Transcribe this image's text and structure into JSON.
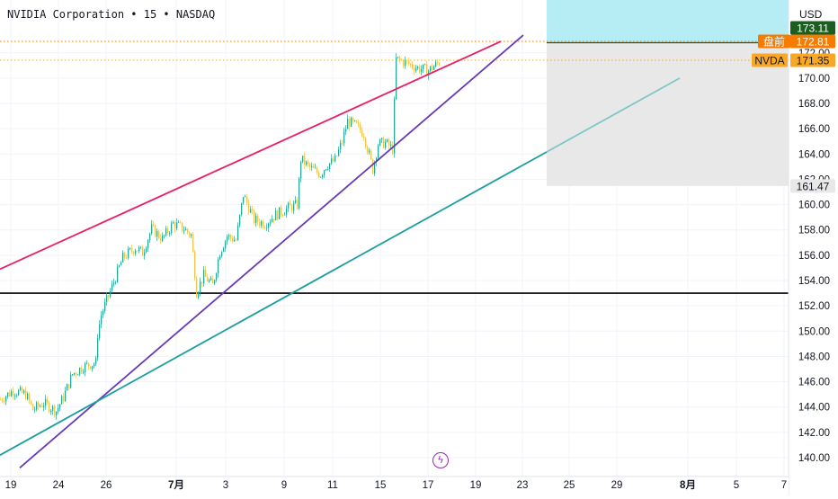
{
  "header": {
    "title": "NVIDIA Corporation • 15 • NASDAQ",
    "currency": "USD"
  },
  "markers": {
    "premarket_label": "盘前",
    "premarket_price": "172.81",
    "symbol_label": "NVDA",
    "symbol_price": "171.35",
    "target_price": "173.11",
    "stop_price": "161.47",
    "event_icon": "lightning-icon"
  },
  "colors": {
    "upper_trend": "#e91e63",
    "lower_trend": "#673ab7",
    "support_trend": "#1a9e9e",
    "horizontal_line": "#000000",
    "candle_up": "#26a69a",
    "candle_down": "#f2c14e",
    "target_zone": "#b2ebf2",
    "stop_zone": "#e8e8e8",
    "premarket_tag": "#f57c00",
    "symbol_tag": "#f9a825"
  },
  "chart_data": {
    "type": "candlestick",
    "title": "NVIDIA Corporation • 15 • NASDAQ",
    "ylabel": "USD",
    "ylim": [
      139.2,
      176.5
    ],
    "y_ticks": [
      "140.00",
      "142.00",
      "144.00",
      "146.00",
      "148.00",
      "150.00",
      "152.00",
      "154.00",
      "156.00",
      "158.00",
      "160.00",
      "162.00",
      "164.00",
      "166.00",
      "168.00",
      "170.00",
      "172.00"
    ],
    "x_ticks": [
      "19",
      "24",
      "26",
      "7月",
      "3",
      "9",
      "11",
      "15",
      "17",
      "19",
      "23",
      "25",
      "29",
      "8月",
      "5",
      "7"
    ],
    "price_path": [
      [
        0,
        144.6
      ],
      [
        14,
        145.3
      ],
      [
        28,
        145.0
      ],
      [
        36,
        143.8
      ],
      [
        48,
        144.3
      ],
      [
        62,
        143.7
      ],
      [
        70,
        144.8
      ],
      [
        80,
        146.6
      ],
      [
        92,
        147.2
      ],
      [
        106,
        147.5
      ],
      [
        108,
        149.8
      ],
      [
        112,
        151.3
      ],
      [
        124,
        153.5
      ],
      [
        136,
        155.8
      ],
      [
        150,
        156.6
      ],
      [
        158,
        156.2
      ],
      [
        168,
        158.1
      ],
      [
        180,
        157.3
      ],
      [
        192,
        158.5
      ],
      [
        204,
        158.1
      ],
      [
        212,
        157.6
      ],
      [
        218,
        153.1
      ],
      [
        226,
        154.4
      ],
      [
        236,
        153.6
      ],
      [
        244,
        156.3
      ],
      [
        252,
        157.5
      ],
      [
        262,
        157.2
      ],
      [
        270,
        160.8
      ],
      [
        282,
        158.8
      ],
      [
        294,
        158.5
      ],
      [
        306,
        159.2
      ],
      [
        322,
        159.8
      ],
      [
        330,
        160.0
      ],
      [
        334,
        163.6
      ],
      [
        344,
        162.9
      ],
      [
        356,
        162.4
      ],
      [
        362,
        163.1
      ],
      [
        372,
        163.5
      ],
      [
        380,
        165.0
      ],
      [
        386,
        166.6
      ],
      [
        396,
        166.2
      ],
      [
        404,
        165.6
      ],
      [
        414,
        162.8
      ],
      [
        420,
        164.8
      ],
      [
        428,
        164.9
      ],
      [
        436,
        164.4
      ],
      [
        440,
        171.5
      ],
      [
        452,
        171.2
      ],
      [
        464,
        170.8
      ],
      [
        476,
        170.6
      ],
      [
        490,
        171.4
      ]
    ],
    "trend_lines": [
      {
        "from": [
          0,
          154.9
        ],
        "to": [
          557,
          172.9
        ]
      },
      {
        "from": [
          22,
          139.2
        ],
        "to": [
          582,
          173.4
        ]
      },
      {
        "from": [
          0,
          140.2
        ],
        "to": [
          756,
          170.0
        ]
      }
    ],
    "horizontal_level": 153.0,
    "zones": {
      "target": [
        172.8,
        176.5
      ],
      "stop": [
        161.47,
        172.8
      ]
    }
  }
}
